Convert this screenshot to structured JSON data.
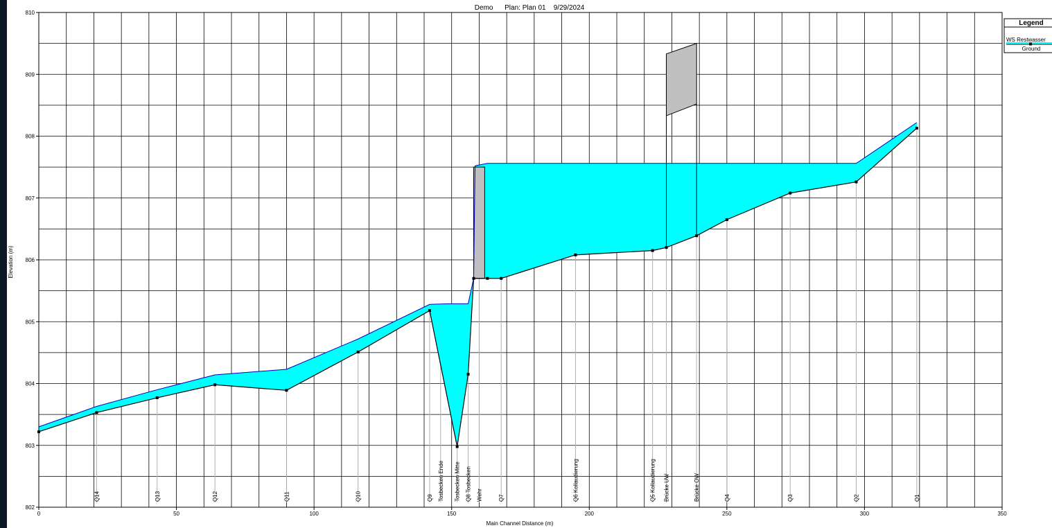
{
  "window": {
    "background": "#ffffff",
    "frame": "#0d1826"
  },
  "chart_data": {
    "type": "area",
    "title": "Demo      Plan: Plan 01    9/29/2024",
    "xlabel": "Main Channel Distance (m)",
    "ylabel": "Elevation (m)",
    "xlim": [
      0,
      350
    ],
    "ylim": [
      802,
      810
    ],
    "x_ticks": [
      0,
      50,
      100,
      150,
      200,
      250,
      300,
      350
    ],
    "y_ticks": [
      802,
      803,
      804,
      805,
      806,
      807,
      808,
      809,
      810
    ],
    "grid": true,
    "colors": {
      "water": "#00ffff",
      "ground": "#000000",
      "structure": "#c0c0c0"
    },
    "legend": {
      "title": "Legend",
      "position": "top-right",
      "entries": [
        "WS  Restwasser",
        "Ground"
      ]
    },
    "series": [
      {
        "name": "Ground",
        "points": [
          [
            0,
            803.22
          ],
          [
            21,
            803.53
          ],
          [
            43,
            803.77
          ],
          [
            64,
            803.98
          ],
          [
            90,
            803.89
          ],
          [
            116,
            804.51
          ],
          [
            142,
            805.18
          ],
          [
            152,
            802.98
          ],
          [
            156,
            804.15
          ],
          [
            158,
            805.7
          ],
          [
            163,
            805.7
          ],
          [
            168,
            805.7
          ],
          [
            195,
            806.08
          ],
          [
            223,
            806.15
          ],
          [
            228,
            806.2
          ],
          [
            239,
            806.39
          ],
          [
            250,
            806.65
          ],
          [
            273,
            807.08
          ],
          [
            297,
            807.26
          ],
          [
            319,
            808.13
          ]
        ]
      },
      {
        "name": "WS  Restwasser",
        "points": [
          [
            0,
            803.3
          ],
          [
            21,
            803.63
          ],
          [
            43,
            803.9
          ],
          [
            64,
            804.14
          ],
          [
            90,
            804.23
          ],
          [
            116,
            804.72
          ],
          [
            142,
            805.28
          ],
          [
            149,
            805.29
          ],
          [
            156,
            805.29
          ],
          [
            158,
            805.7
          ],
          [
            158.5,
            807.52
          ],
          [
            163,
            807.56
          ],
          [
            168,
            807.56
          ],
          [
            195,
            807.56
          ],
          [
            223,
            807.56
          ],
          [
            228,
            807.56
          ],
          [
            239,
            807.56
          ],
          [
            250,
            807.56
          ],
          [
            273,
            807.56
          ],
          [
            297,
            807.56
          ],
          [
            319,
            808.22
          ]
        ]
      }
    ],
    "cross_sections": [
      {
        "label": "Q14",
        "x": 21
      },
      {
        "label": "Q13",
        "x": 43
      },
      {
        "label": "Q12",
        "x": 64
      },
      {
        "label": "Q11",
        "x": 90
      },
      {
        "label": "Q10",
        "x": 116
      },
      {
        "label": "Q9",
        "x": 142
      },
      {
        "label": "Tosbecken Ende",
        "x": 146
      },
      {
        "label": "Tosbecken Mitte",
        "x": 152
      },
      {
        "label": "Q8 Tosbecken",
        "x": 156
      },
      {
        "label": "Wehr",
        "x": 160
      },
      {
        "label": "Q7",
        "x": 168
      },
      {
        "label": "Q6 Kollaudierung",
        "x": 195
      },
      {
        "label": "Q5 Kollaudierung",
        "x": 223
      },
      {
        "label": "Brücke UW",
        "x": 228
      },
      {
        "label": "Brücke OW",
        "x": 239
      },
      {
        "label": "Q4",
        "x": 250
      },
      {
        "label": "Q3",
        "x": 273
      },
      {
        "label": "Q2",
        "x": 297
      },
      {
        "label": "Q1",
        "x": 319
      }
    ],
    "structures": [
      {
        "name": "Wehr",
        "x0": 158,
        "x1": 162,
        "y_bottom": 805.7,
        "y_top": 807.5
      },
      {
        "name": "Brücke",
        "x0": 228,
        "x1": 239,
        "y_bottom_left": 808.33,
        "y_bottom_right": 808.52,
        "y_top_left": 809.33,
        "y_top_right": 809.5
      }
    ]
  }
}
